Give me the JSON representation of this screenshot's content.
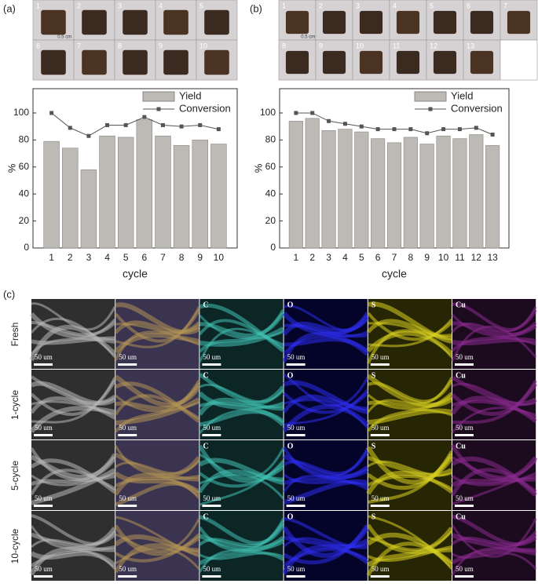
{
  "panel_labels": [
    "(a)",
    "(b)",
    "(c)"
  ],
  "photos_a": {
    "labels": [
      "1",
      "2",
      "3",
      "4",
      "5",
      "6",
      "7",
      "8",
      "9",
      "10"
    ],
    "scale": "0.5 cm"
  },
  "photos_b": {
    "labels": [
      "1",
      "2",
      "3",
      "4",
      "5",
      "6",
      "7",
      "8",
      "9",
      "10",
      "11",
      "12",
      "13"
    ],
    "scale": "0.5 cm"
  },
  "chart_data": [
    {
      "type": "bar",
      "xlabel": "cycle",
      "ylabel": "%",
      "categories": [
        "1",
        "2",
        "3",
        "4",
        "5",
        "6",
        "7",
        "8",
        "9",
        "10"
      ],
      "series": [
        {
          "name": "Yield",
          "type": "bar",
          "color": "#bdb9b5",
          "values": [
            79,
            74,
            58,
            83,
            82,
            95,
            83,
            76,
            80,
            77
          ]
        },
        {
          "name": "Conversion",
          "type": "line",
          "color": "#555555",
          "values": [
            100,
            89,
            83,
            91,
            91,
            97,
            91,
            90,
            91,
            88
          ]
        }
      ],
      "ylim": [
        0,
        118
      ],
      "yticks": [
        0,
        20,
        40,
        60,
        80,
        100
      ],
      "legend": "upper right"
    },
    {
      "type": "bar",
      "xlabel": "cycle",
      "ylabel": "%",
      "categories": [
        "1",
        "2",
        "3",
        "4",
        "5",
        "6",
        "7",
        "8",
        "9",
        "10",
        "11",
        "12",
        "13"
      ],
      "series": [
        {
          "name": "Yield",
          "type": "bar",
          "color": "#bdb9b5",
          "values": [
            94,
            96,
            87,
            88,
            86,
            81,
            78,
            82,
            77,
            83,
            81,
            84,
            76
          ]
        },
        {
          "name": "Conversion",
          "type": "line",
          "color": "#555555",
          "values": [
            100,
            100,
            94,
            92,
            90,
            88,
            88,
            88,
            85,
            88,
            88,
            89,
            84
          ]
        }
      ],
      "ylim": [
        0,
        118
      ],
      "yticks": [
        0,
        20,
        40,
        60,
        80,
        100
      ],
      "legend": "upper right"
    }
  ],
  "panel_c": {
    "rows": [
      "Fresh",
      "1-cycle",
      "5-cycle",
      "10-cycle"
    ],
    "elements": [
      "C",
      "O",
      "S",
      "Cu"
    ],
    "scale_bar": "50 um"
  }
}
